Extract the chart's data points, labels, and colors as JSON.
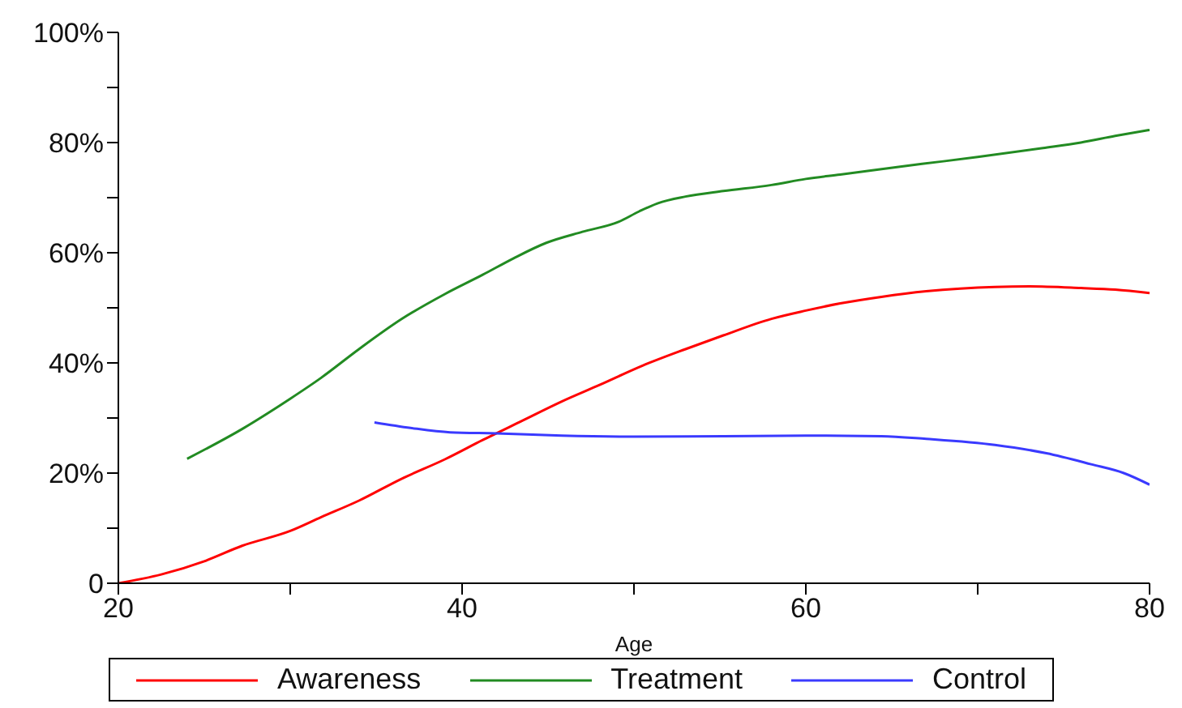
{
  "chart_data": {
    "type": "line",
    "xlabel": "Age",
    "xlim": [
      20,
      80
    ],
    "xticks": [
      20,
      {
        "value": 30,
        "label": null
      },
      40,
      {
        "value": 50,
        "label": null
      },
      60,
      {
        "value": 70,
        "label": null
      },
      80
    ],
    "ylim": [
      0,
      100
    ],
    "yticks": [
      {
        "value": 0,
        "label": "0"
      },
      {
        "value": 10,
        "label": null
      },
      {
        "value": 20,
        "label": "20%"
      },
      {
        "value": 30,
        "label": null
      },
      {
        "value": 40,
        "label": "40%"
      },
      {
        "value": 50,
        "label": null
      },
      {
        "value": 60,
        "label": "60%"
      },
      {
        "value": 70,
        "label": null
      },
      {
        "value": 80,
        "label": "80%"
      },
      {
        "value": 90,
        "label": null
      },
      {
        "value": 100,
        "label": "100%"
      }
    ],
    "grid": false,
    "legend": "bottom",
    "marker": "none",
    "line_style": "solid",
    "series": [
      {
        "name": "Awareness",
        "color": "#ff0000",
        "x": [
          20,
          22.5,
          25,
          27.2,
          30,
          31.8,
          34,
          36.5,
          39,
          41.2,
          43.5,
          45.8,
          48,
          50.5,
          53,
          55.2,
          58,
          60,
          62,
          64.4,
          67,
          69,
          71,
          73,
          76,
          78,
          80
        ],
        "values": [
          0,
          1.6,
          4,
          6.8,
          9.5,
          12,
          15,
          19,
          22.5,
          26,
          29.5,
          33,
          36,
          39.5,
          42.5,
          45,
          48,
          49.5,
          50.8,
          52,
          53,
          53.5,
          53.8,
          53.9,
          53.6,
          53.3,
          52.7
        ]
      },
      {
        "name": "Treatment",
        "color": "#228b22",
        "x": [
          24,
          27.2,
          30,
          31.8,
          34,
          36.5,
          39,
          41.2,
          43,
          44.9,
          47,
          49.1,
          50.3,
          51.4,
          53,
          55.2,
          58,
          60,
          62,
          65.4,
          68,
          70,
          73.8,
          76,
          78,
          80
        ],
        "values": [
          22.6,
          28,
          33.5,
          37.3,
          42.5,
          48,
          52.5,
          56,
          59,
          61.8,
          63.8,
          65.6,
          67.5,
          69,
          70.2,
          71.2,
          72.3,
          73.4,
          74.2,
          75.6,
          76.6,
          77.4,
          79,
          80,
          81.2,
          82.3
        ]
      },
      {
        "name": "Control",
        "color": "#3a3aff",
        "x": [
          34.9,
          37,
          39.3,
          42,
          45.8,
          50,
          55.2,
          60,
          64.4,
          67,
          71,
          74,
          76.6,
          78.5,
          80
        ],
        "values": [
          29.2,
          28.2,
          27.4,
          27.2,
          26.8,
          26.6,
          26.7,
          26.8,
          26.7,
          26.2,
          25.1,
          23.6,
          21.6,
          20,
          17.9
        ]
      }
    ]
  }
}
